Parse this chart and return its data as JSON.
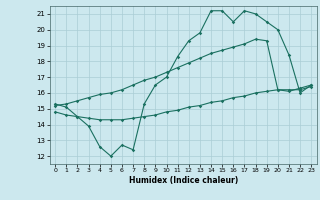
{
  "xlabel": "Humidex (Indice chaleur)",
  "bg_color": "#cce8ee",
  "grid_color": "#aacdd5",
  "line_color": "#1a7060",
  "xlim": [
    -0.5,
    23.5
  ],
  "ylim": [
    11.5,
    21.5
  ],
  "yticks": [
    12,
    13,
    14,
    15,
    16,
    17,
    18,
    19,
    20,
    21
  ],
  "xticks": [
    0,
    1,
    2,
    3,
    4,
    5,
    6,
    7,
    8,
    9,
    10,
    11,
    12,
    13,
    14,
    15,
    16,
    17,
    18,
    19,
    20,
    21,
    22,
    23
  ],
  "line1_x": [
    0,
    1,
    2,
    3,
    4,
    5,
    6,
    7,
    8,
    9,
    10,
    11,
    12,
    13,
    14,
    15,
    16,
    17,
    18,
    19,
    20,
    21,
    22,
    23
  ],
  "line1_y": [
    15.3,
    15.1,
    14.5,
    13.9,
    12.6,
    12.0,
    12.7,
    12.4,
    15.3,
    16.5,
    17.0,
    18.3,
    19.3,
    19.8,
    21.2,
    21.2,
    20.5,
    21.2,
    21.0,
    20.5,
    20.0,
    18.4,
    16.0,
    16.5
  ],
  "line2_x": [
    0,
    1,
    2,
    3,
    4,
    5,
    6,
    7,
    8,
    9,
    10,
    11,
    12,
    13,
    14,
    15,
    16,
    17,
    18,
    19,
    20,
    21,
    22,
    23
  ],
  "line2_y": [
    15.2,
    15.3,
    15.5,
    15.7,
    15.9,
    16.0,
    16.2,
    16.5,
    16.8,
    17.0,
    17.3,
    17.6,
    17.9,
    18.2,
    18.5,
    18.7,
    18.9,
    19.1,
    19.4,
    19.3,
    16.2,
    16.1,
    16.3,
    16.5
  ],
  "line3_x": [
    0,
    1,
    2,
    3,
    4,
    5,
    6,
    7,
    8,
    9,
    10,
    11,
    12,
    13,
    14,
    15,
    16,
    17,
    18,
    19,
    20,
    21,
    22,
    23
  ],
  "line3_y": [
    14.8,
    14.6,
    14.5,
    14.4,
    14.3,
    14.3,
    14.3,
    14.4,
    14.5,
    14.6,
    14.8,
    14.9,
    15.1,
    15.2,
    15.4,
    15.5,
    15.7,
    15.8,
    16.0,
    16.1,
    16.2,
    16.2,
    16.2,
    16.4
  ]
}
